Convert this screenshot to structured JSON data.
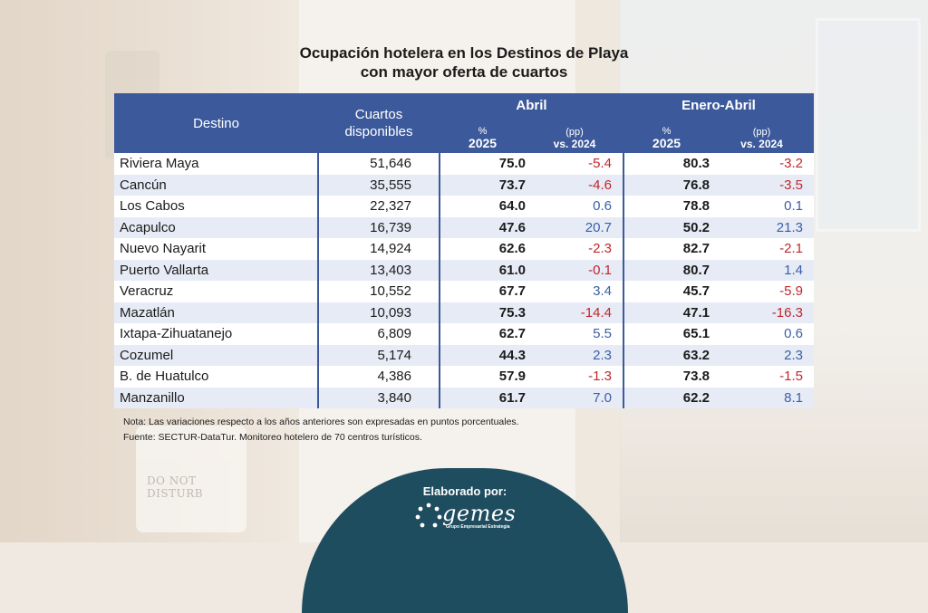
{
  "title": {
    "line1": "Ocupación hotelera en los Destinos de Playa",
    "line2": "con mayor oferta de cuartos"
  },
  "table": {
    "headers": {
      "destino": "Destino",
      "cuartos_line1": "Cuartos",
      "cuartos_line2": "disponibles",
      "group1": "Abril",
      "group2": "Enero-Abril",
      "pct_symbol": "%",
      "pct_year": "2025",
      "pp_label": "(pp)",
      "pp_vs": "vs. 2024"
    },
    "rows": [
      {
        "destino": "Riviera Maya",
        "cuartos": "51,646",
        "abril_pct": "75.0",
        "abril_pp": "-5.4",
        "ene_pct": "80.3",
        "ene_pp": "-3.2"
      },
      {
        "destino": "Cancún",
        "cuartos": "35,555",
        "abril_pct": "73.7",
        "abril_pp": "-4.6",
        "ene_pct": "76.8",
        "ene_pp": "-3.5"
      },
      {
        "destino": "Los Cabos",
        "cuartos": "22,327",
        "abril_pct": "64.0",
        "abril_pp": "0.6",
        "ene_pct": "78.8",
        "ene_pp": "0.1"
      },
      {
        "destino": "Acapulco",
        "cuartos": "16,739",
        "abril_pct": "47.6",
        "abril_pp": "20.7",
        "ene_pct": "50.2",
        "ene_pp": "21.3"
      },
      {
        "destino": "Nuevo Nayarit",
        "cuartos": "14,924",
        "abril_pct": "62.6",
        "abril_pp": "-2.3",
        "ene_pct": "82.7",
        "ene_pp": "-2.1"
      },
      {
        "destino": "Puerto Vallarta",
        "cuartos": "13,403",
        "abril_pct": "61.0",
        "abril_pp": "-0.1",
        "ene_pct": "80.7",
        "ene_pp": "1.4"
      },
      {
        "destino": "Veracruz",
        "cuartos": "10,552",
        "abril_pct": "67.7",
        "abril_pp": "3.4",
        "ene_pct": "45.7",
        "ene_pp": "-5.9"
      },
      {
        "destino": "Mazatlán",
        "cuartos": "10,093",
        "abril_pct": "75.3",
        "abril_pp": "-14.4",
        "ene_pct": "47.1",
        "ene_pp": "-16.3"
      },
      {
        "destino": "Ixtapa-Zihuatanejo",
        "cuartos": "6,809",
        "abril_pct": "62.7",
        "abril_pp": "5.5",
        "ene_pct": "65.1",
        "ene_pp": "0.6"
      },
      {
        "destino": "Cozumel",
        "cuartos": "5,174",
        "abril_pct": "44.3",
        "abril_pp": "2.3",
        "ene_pct": "63.2",
        "ene_pp": "2.3"
      },
      {
        "destino": "B. de Huatulco",
        "cuartos": "4,386",
        "abril_pct": "57.9",
        "abril_pp": "-1.3",
        "ene_pct": "73.8",
        "ene_pp": "-1.5"
      },
      {
        "destino": "Manzanillo",
        "cuartos": "3,840",
        "abril_pct": "61.7",
        "abril_pp": "7.0",
        "ene_pct": "62.2",
        "ene_pp": "8.1"
      }
    ]
  },
  "notes": {
    "nota": "Nota: Las variaciones respecto a los años anteriores son expresadas en puntos porcentuales.",
    "fuente": "Fuente: SECTUR-DataTur. Monitoreo hotelero de 70 centros turísticos."
  },
  "footer": {
    "label": "Elaborado por:",
    "logo_text": "gemes",
    "logo_sub": "Grupo Empresarial Estrategia"
  },
  "background": {
    "door_sign": "DO NOT DISTURB"
  },
  "colors": {
    "header_bg": "#3c5a9b",
    "row_alt": "#e6ebf5",
    "negative": "#c0262c",
    "positive": "#3a5fa6",
    "footer_bg": "#1f4d60"
  }
}
